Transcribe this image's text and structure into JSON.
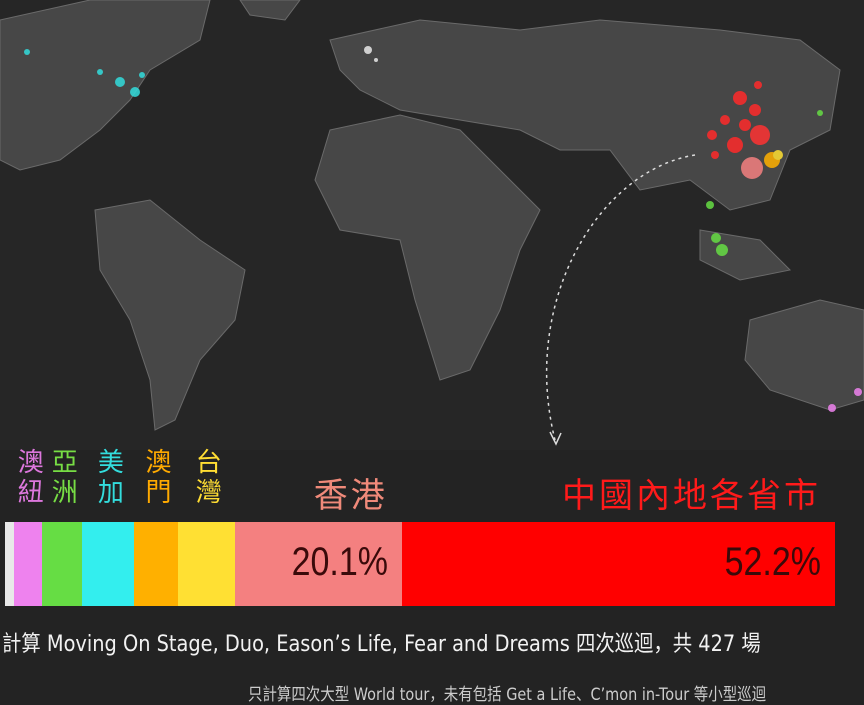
{
  "chart_data": {
    "type": "stacked-share-bar",
    "categories": [
      null,
      "澳紐",
      "亞洲",
      "美加",
      "澳門",
      "台灣",
      "香港",
      "中國內地各省市"
    ],
    "values": [
      1.1,
      3.4,
      4.8,
      6.3,
      5.2,
      6.9,
      20.1,
      52.2
    ],
    "value_labels": [
      null,
      null,
      null,
      null,
      null,
      null,
      "20.1%",
      "52.2%"
    ],
    "colors": [
      "#e8e8e8",
      "#ee82ee",
      "#66dd44",
      "#33eeee",
      "#ffb000",
      "#ffe033",
      "#f48080",
      "#ff0000"
    ],
    "label_colors": [
      "#e8e8e8",
      "#dd77dd",
      "#77dd44",
      "#33dddd",
      "#ffaa00",
      "#ffdd33",
      "#f08a7a",
      "#ff1a1a"
    ],
    "notes": [
      "計算 Moving On Stage, Duo, Eason’s Life, Fear and Dreams 四次巡迴，共 427 場",
      "只計算四次大型 World tour，未有包括 Get a Life、C’mon in-Tour 等小型巡迴"
    ]
  }
}
